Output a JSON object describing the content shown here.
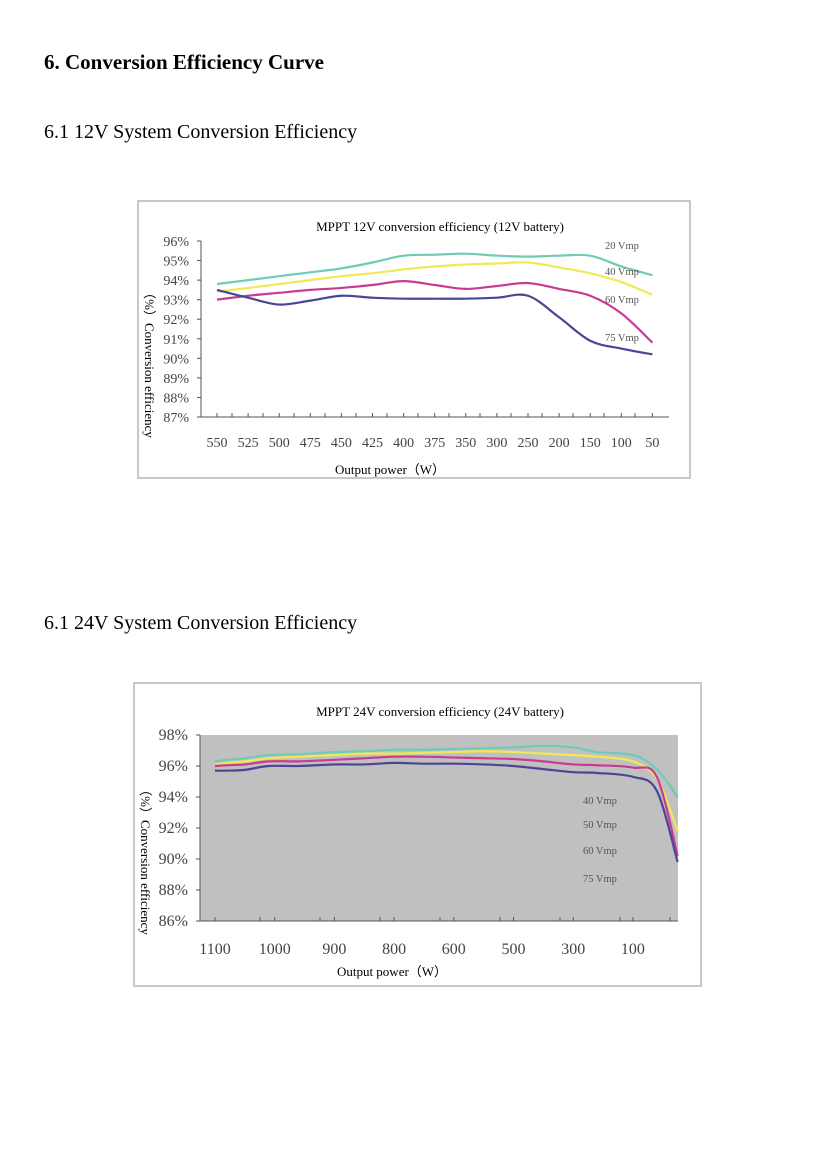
{
  "section_title": "6. Conversion Efficiency Curve",
  "subsection_12v": "6.1 12V System Conversion Efficiency",
  "subsection_24v": "6.1 24V System Conversion Efficiency",
  "chart_data": [
    {
      "type": "line",
      "title": "MPPT 12V conversion efficiency (12V battery)",
      "xlabel": "Output power（W）",
      "ylabel": "（%）Conversion efficiency",
      "x_tick_labels": [
        "550",
        "525",
        "500",
        "475",
        "450",
        "425",
        "400",
        "375",
        "350",
        "300",
        "250",
        "200",
        "150",
        "100",
        "50"
      ],
      "y_tick_labels": [
        "96%",
        "95%",
        "94%",
        "93%",
        "92%",
        "91%",
        "90%",
        "89%",
        "88%",
        "87%"
      ],
      "ylim": [
        87,
        96
      ],
      "grid": false,
      "legend_placement": "right, beside line ends",
      "series": [
        {
          "name": "20 Vmp",
          "color": "#6fcab9",
          "values": [
            93.8,
            94.0,
            94.2,
            94.4,
            94.6,
            94.9,
            95.25,
            95.3,
            95.35,
            95.25,
            95.2,
            95.25,
            95.25,
            94.7,
            94.25
          ]
        },
        {
          "name": "40 Vmp",
          "color": "#eeea55",
          "values": [
            93.4,
            93.6,
            93.8,
            94.0,
            94.2,
            94.35,
            94.55,
            94.7,
            94.8,
            94.85,
            94.9,
            94.65,
            94.35,
            93.9,
            93.25
          ]
        },
        {
          "name": "60 Vmp",
          "color": "#c93a93",
          "values": [
            93.0,
            93.2,
            93.35,
            93.5,
            93.6,
            93.75,
            93.95,
            93.75,
            93.55,
            93.7,
            93.85,
            93.55,
            93.2,
            92.3,
            90.8
          ]
        },
        {
          "name": "75 Vmp",
          "color": "#4a4596",
          "values": [
            93.5,
            93.1,
            92.75,
            92.95,
            93.2,
            93.1,
            93.05,
            93.05,
            93.05,
            93.1,
            93.2,
            92.1,
            90.9,
            90.5,
            90.2
          ]
        }
      ]
    },
    {
      "type": "line",
      "title": "MPPT 24V conversion efficiency (24V battery)",
      "xlabel": "Output power（W）",
      "ylabel": "（%）Conversion efficiency",
      "x_tick_labels": [
        "1100",
        "1000",
        "900",
        "800",
        "600",
        "500",
        "300",
        "100"
      ],
      "y_tick_labels": [
        "98%",
        "96%",
        "94%",
        "92%",
        "90%",
        "88%",
        "86%"
      ],
      "ylim": [
        86,
        98
      ],
      "grid": false,
      "legend_placement": "right, below lines",
      "series": [
        {
          "name": "40 Vmp",
          "color": "#6fcab9",
          "x": [
            0,
            0.2,
            0.5,
            0.9,
            1.4,
            2.0,
            2.5,
            3.0,
            3.5,
            4.0,
            4.5,
            5.0,
            5.5,
            6.0,
            6.4,
            7.0,
            7.4,
            7.75
          ],
          "values": [
            96.3,
            96.4,
            96.5,
            96.7,
            96.75,
            96.9,
            96.95,
            97.05,
            97.05,
            97.1,
            97.15,
            97.2,
            97.3,
            97.2,
            96.9,
            96.7,
            95.8,
            94.0
          ]
        },
        {
          "name": "50 Vmp",
          "color": "#eeea55",
          "x": [
            0,
            0.2,
            0.5,
            0.9,
            1.4,
            2.0,
            2.5,
            3.0,
            3.5,
            4.0,
            4.5,
            5.0,
            5.5,
            6.0,
            6.4,
            7.0,
            7.4,
            7.75
          ],
          "values": [
            96.1,
            96.2,
            96.3,
            96.5,
            96.6,
            96.7,
            96.8,
            96.8,
            96.85,
            96.9,
            96.95,
            96.9,
            96.8,
            96.7,
            96.6,
            96.3,
            95.2,
            91.8
          ]
        },
        {
          "name": "60 Vmp",
          "color": "#c93a93",
          "x": [
            0,
            0.2,
            0.5,
            0.9,
            1.4,
            2.0,
            2.5,
            3.0,
            3.5,
            4.0,
            4.5,
            5.0,
            5.5,
            6.0,
            6.4,
            7.0,
            7.4,
            7.75
          ],
          "values": [
            96.0,
            96.05,
            96.1,
            96.3,
            96.3,
            96.4,
            96.5,
            96.6,
            96.6,
            96.55,
            96.5,
            96.45,
            96.3,
            96.1,
            96.05,
            95.9,
            95.3,
            90.2
          ]
        },
        {
          "name": "75 Vmp",
          "color": "#4a4596",
          "x": [
            0,
            0.2,
            0.5,
            0.9,
            1.4,
            2.0,
            2.5,
            3.0,
            3.5,
            4.0,
            4.5,
            5.0,
            5.5,
            6.0,
            6.4,
            7.0,
            7.4,
            7.75
          ],
          "values": [
            95.7,
            95.7,
            95.75,
            96.0,
            96.0,
            96.1,
            96.1,
            96.2,
            96.15,
            96.15,
            96.1,
            96.0,
            95.8,
            95.6,
            95.55,
            95.3,
            94.4,
            89.8
          ]
        }
      ]
    }
  ]
}
